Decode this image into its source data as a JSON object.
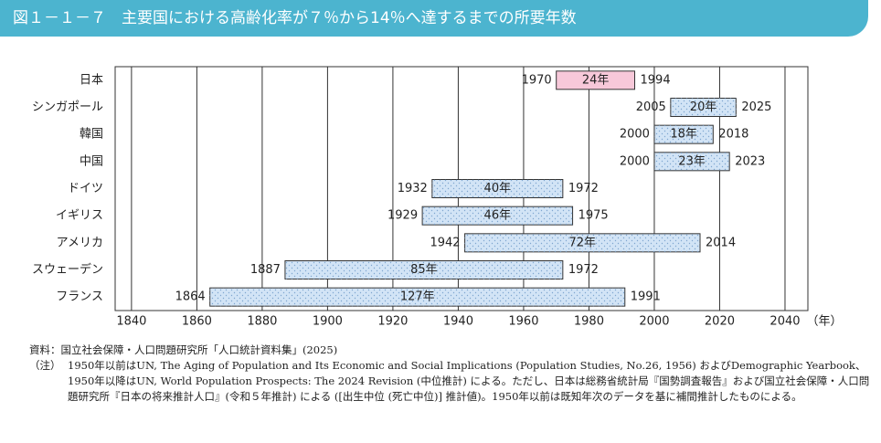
{
  "chart_data": {
    "type": "range-bar",
    "title": "図１－１－７　主要国における高齢化率が７％から14％へ達するまでの所要年数",
    "categories": [
      "日本",
      "シンガポール",
      "韓国",
      "中国",
      "ドイツ",
      "イギリス",
      "アメリカ",
      "スウェーデン",
      "フランス"
    ],
    "start": [
      1970,
      2005,
      2000,
      2000,
      1932,
      1929,
      1942,
      1887,
      1864
    ],
    "end": [
      1994,
      2025,
      2018,
      2023,
      1972,
      1975,
      2014,
      1972,
      1991
    ],
    "values": [
      24,
      20,
      18,
      23,
      40,
      46,
      72,
      85,
      127
    ],
    "value_labels": [
      "24年",
      "20年",
      "18年",
      "23年",
      "40年",
      "46年",
      "72年",
      "85年",
      "127年"
    ],
    "colors": [
      "#f7c8d9",
      "#d2e4f6",
      "#d2e4f6",
      "#d2e4f6",
      "#d2e4f6",
      "#d2e4f6",
      "#d2e4f6",
      "#d2e4f6",
      "#d2e4f6"
    ],
    "xlim": [
      1835,
      2047
    ],
    "xticks": [
      1840,
      1860,
      1880,
      1900,
      1920,
      1940,
      1960,
      1980,
      2000,
      2020,
      2040
    ],
    "xlabel": "（年）",
    "grid": true,
    "source": "資料：国立社会保障・人口問題研究所「人口統計資料集」(2025)",
    "note_label": "（注）",
    "note": "1950年以前はUN, The Aging of Population and Its Economic and Social Implications (Population Studies, No.26, 1956) およびDemographic Yearbook、1950年以降はUN, World Population Prospects: The 2024 Revision (中位推計) による。ただし、日本は総務省統計局『国勢調査報告』および国立社会保障・人口問題研究所『日本の将来推計人口』(令和５年推計) による ([出生中位 (死亡中位)] 推計値)。1950年以前は既知年次のデータを基に補間推計したものによる。"
  }
}
